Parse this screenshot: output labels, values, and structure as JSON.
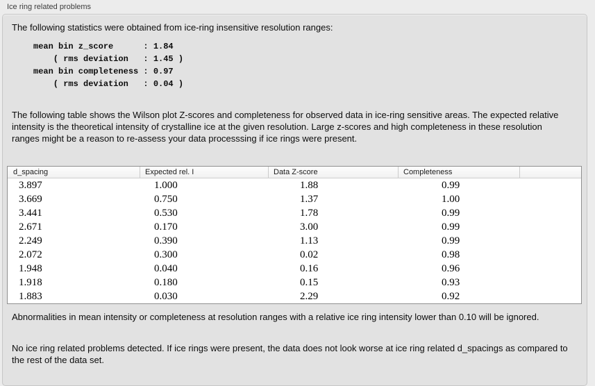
{
  "panel": {
    "title": "Ice ring related problems"
  },
  "intro": "The following statistics were obtained from ice-ring insensitive resolution ranges:",
  "stats_block": "mean bin z_score      : 1.84\n    ( rms deviation   : 1.45 )\nmean bin completeness : 0.97\n    ( rms deviation   : 0.04 )",
  "stats": {
    "mean_bin_z_score": "1.84",
    "z_score_rms_deviation": "1.45",
    "mean_bin_completeness": "0.97",
    "completeness_rms_deviation": "0.04"
  },
  "table_description": "The following table shows the Wilson plot Z-scores and completeness for observed data in ice-ring sensitive areas. The expected relative intensity is the theoretical intensity of crystalline ice at the given resolution. Large z-scores and high completeness in these resolution ranges might be a reason to re-assess your data processsing if ice rings were present.",
  "table": {
    "columns": [
      "d_spacing",
      "Expected rel. I",
      "Data Z-score",
      "Completeness"
    ],
    "rows": [
      [
        "3.897",
        "1.000",
        "1.88",
        "0.99"
      ],
      [
        "3.669",
        "0.750",
        "1.37",
        "1.00"
      ],
      [
        "3.441",
        "0.530",
        "1.78",
        "0.99"
      ],
      [
        "2.671",
        "0.170",
        "3.00",
        "0.99"
      ],
      [
        "2.249",
        "0.390",
        "1.13",
        "0.99"
      ],
      [
        "2.072",
        "0.300",
        "0.02",
        "0.98"
      ],
      [
        "1.948",
        "0.040",
        "0.16",
        "0.96"
      ],
      [
        "1.918",
        "0.180",
        "0.15",
        "0.93"
      ],
      [
        "1.883",
        "0.030",
        "2.29",
        "0.92"
      ]
    ]
  },
  "note_ignore": "Abnormalities in mean intensity or completeness at resolution ranges with a relative ice ring intensity lower than 0.10 will be ignored.",
  "conclusion": "No ice ring related problems detected. If ice rings were present, the data does not look worse at ice ring related d_spacings as compared to the rest of the data set."
}
